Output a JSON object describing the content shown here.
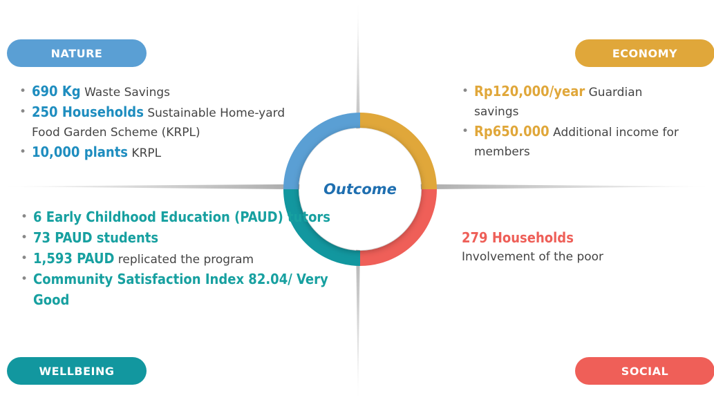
{
  "center": "Outcome",
  "quadrants": {
    "nature": {
      "label": "NATURE",
      "items": [
        {
          "highlight": "690 Kg",
          "text": "Waste Savings"
        },
        {
          "highlight": "250 Households",
          "text": "Sustainable Home-yard Food Garden Scheme (KRPL)"
        },
        {
          "highlight": "10,000 plants",
          "text": "KRPL"
        }
      ]
    },
    "economy": {
      "label": "ECONOMY",
      "items": [
        {
          "highlight": "Rp120,000/year",
          "text": "Guardian savings"
        },
        {
          "highlight": "Rp650.000",
          "text": "Additional income for members"
        }
      ]
    },
    "wellbeing": {
      "label": "WELLBEING",
      "items": [
        {
          "highlight": "6 Early Childhood Education (PAUD) tutors"
        },
        {
          "highlight": "73 PAUD students"
        },
        {
          "highlight": "1,593 PAUD",
          "text": "replicated the program"
        },
        {
          "highlight": "Community Satisfaction Index 82.04/ Very Good"
        }
      ]
    },
    "social": {
      "label": "SOCIAL",
      "highlight": "279 Households",
      "text": "Involvement of the poor"
    }
  }
}
